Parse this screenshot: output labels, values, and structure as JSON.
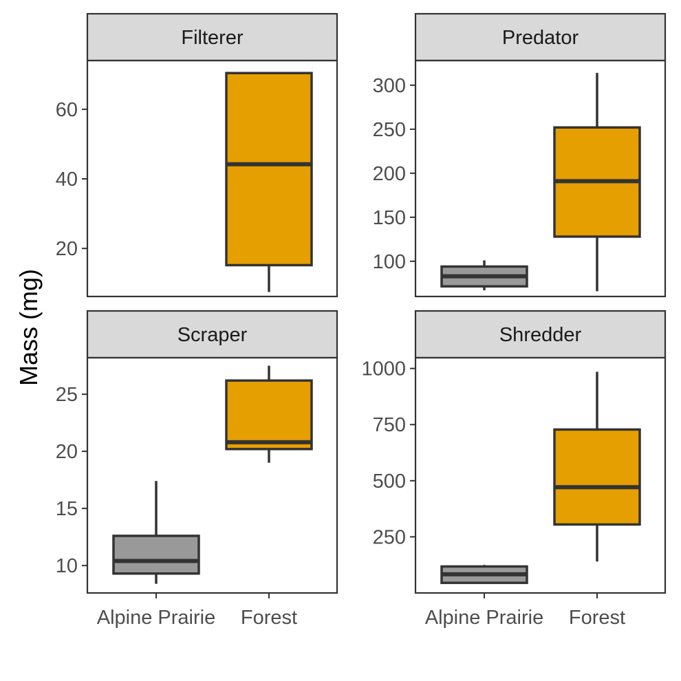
{
  "chart_data": {
    "type": "box",
    "ylabel": "Mass (mg)",
    "xlabel": "",
    "categories": [
      "Alpine Prairie",
      "Forest"
    ],
    "colors": {
      "Alpine Prairie": "#999999",
      "Forest": "#E69F00",
      "outline": "#333333",
      "strip_fill": "#D9D9D9"
    },
    "legend": "none",
    "grid": false,
    "facets": [
      {
        "title": "Filterer",
        "ylim": [
          6.2,
          74
        ],
        "yticks": [
          20,
          40,
          60
        ],
        "boxes": [
          {
            "category": "Forest",
            "min": 7.5,
            "q1": 15.2,
            "median": 44.2,
            "q3": 70.4,
            "max": 70.4
          }
        ]
      },
      {
        "title": "Predator",
        "ylim": [
          60,
          328
        ],
        "yticks": [
          100,
          150,
          200,
          250,
          300
        ],
        "boxes": [
          {
            "category": "Alpine Prairie",
            "min": 67,
            "q1": 71.5,
            "median": 83,
            "q3": 94,
            "max": 101
          },
          {
            "category": "Forest",
            "min": 66,
            "q1": 128,
            "median": 191,
            "q3": 252,
            "max": 314
          }
        ]
      },
      {
        "title": "Scraper",
        "ylim": [
          7.6,
          28.2
        ],
        "yticks": [
          10,
          15,
          20,
          25
        ],
        "boxes": [
          {
            "category": "Alpine Prairie",
            "min": 8.4,
            "q1": 9.3,
            "median": 10.4,
            "q3": 12.6,
            "max": 17.4
          },
          {
            "category": "Forest",
            "min": 19.0,
            "q1": 20.2,
            "median": 20.8,
            "q3": 26.2,
            "max": 27.5
          }
        ]
      },
      {
        "title": "Shredder",
        "ylim": [
          0,
          1048
        ],
        "yticks": [
          250,
          500,
          750,
          1000
        ],
        "boxes": [
          {
            "category": "Alpine Prairie",
            "min": 45,
            "q1": 45,
            "median": 83,
            "q3": 118,
            "max": 125
          },
          {
            "category": "Forest",
            "min": 140,
            "q1": 305,
            "median": 471,
            "q3": 728,
            "max": 985
          }
        ]
      }
    ]
  }
}
